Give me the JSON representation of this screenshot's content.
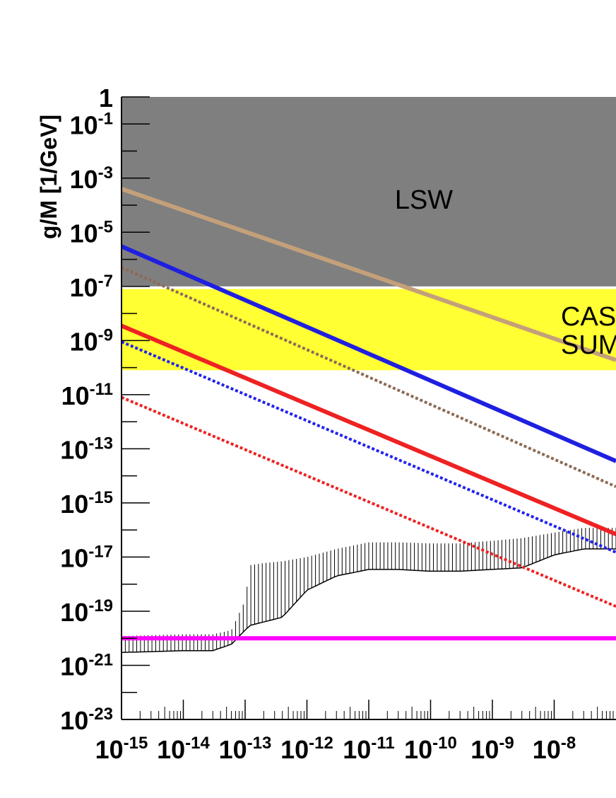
{
  "chart_data": {
    "type": "line",
    "x_scale": "log",
    "y_scale": "log",
    "xlim": [
      1e-15,
      1e-07
    ],
    "ylim": [
      1e-23,
      1
    ],
    "ylabel": "g/M [1/GeV]",
    "xlabel": "",
    "grid": false,
    "y_ticks": [
      {
        "base": "1",
        "exp": ""
      },
      {
        "base": "10",
        "exp": "-1"
      },
      {
        "base": "10",
        "exp": "-3"
      },
      {
        "base": "10",
        "exp": "-5"
      },
      {
        "base": "10",
        "exp": "-7"
      },
      {
        "base": "10",
        "exp": "-9"
      },
      {
        "base": "10",
        "exp": "-11"
      },
      {
        "base": "10",
        "exp": "-13"
      },
      {
        "base": "10",
        "exp": "-15"
      },
      {
        "base": "10",
        "exp": "-17"
      },
      {
        "base": "10",
        "exp": "-19"
      },
      {
        "base": "10",
        "exp": "-21"
      },
      {
        "base": "10",
        "exp": "-23"
      }
    ],
    "y_tick_values": [
      1,
      0.1,
      0.001,
      1e-05,
      1e-07,
      1e-09,
      1e-11,
      1e-13,
      1e-15,
      1e-17,
      1e-19,
      1e-21,
      1e-23
    ],
    "x_ticks": [
      {
        "base": "10",
        "exp": "-15"
      },
      {
        "base": "10",
        "exp": "-14"
      },
      {
        "base": "10",
        "exp": "-13"
      },
      {
        "base": "10",
        "exp": "-12"
      },
      {
        "base": "10",
        "exp": "-11"
      },
      {
        "base": "10",
        "exp": "-10"
      },
      {
        "base": "10",
        "exp": "-9"
      },
      {
        "base": "10",
        "exp": "-8"
      }
    ],
    "x_tick_values": [
      1e-15,
      1e-14,
      1e-13,
      1e-12,
      1e-11,
      1e-10,
      1e-09,
      1e-08
    ],
    "regions": [
      {
        "label_lines": [
          "LSW"
        ],
        "color": "#7f7f7f",
        "y_range": [
          1e-07,
          1
        ]
      },
      {
        "label_lines": [
          "CAS",
          "SUM"
        ],
        "color": "#ffff33",
        "y_range": [
          8e-11,
          8e-08
        ]
      }
    ],
    "series": [
      {
        "style": "solid",
        "color": "#c4a07a",
        "x": [
          1e-15,
          1e-07
        ],
        "y": [
          0.0004,
          1.9e-10
        ]
      },
      {
        "style": "solid",
        "color": "#1f1fe0",
        "x": [
          1e-15,
          1e-07
        ],
        "y": [
          3e-06,
          3.5e-14
        ]
      },
      {
        "style": "dotted",
        "color": "#8b6b55",
        "x": [
          1e-15,
          1e-07
        ],
        "y": [
          5e-07,
          4e-15
        ]
      },
      {
        "style": "solid",
        "color": "#ee2222",
        "x": [
          1e-15,
          1e-07
        ],
        "y": [
          3.5e-09,
          7e-17
        ]
      },
      {
        "style": "dotted",
        "color": "#2222ee",
        "x": [
          1e-15,
          1e-07
        ],
        "y": [
          9e-10,
          1.5e-17
        ]
      },
      {
        "style": "dotted",
        "color": "#ee2222",
        "x": [
          1e-15,
          1e-07
        ],
        "y": [
          8e-12,
          1.5e-19
        ]
      },
      {
        "style": "solid",
        "color": "#ff00ff",
        "x": [
          1e-15,
          1e-07
        ],
        "y": [
          1e-20,
          1e-20
        ]
      }
    ],
    "band": {
      "color": "#000000",
      "x": [
        1e-15,
        3e-15,
        1e-14,
        3e-14,
        6e-14,
        1e-13,
        1.2e-13,
        2e-13,
        4e-13,
        1e-12,
        3e-12,
        1e-11,
        3e-11,
        1e-10,
        3e-10,
        1e-09,
        3e-09,
        1e-08,
        3e-08,
        1e-07
      ],
      "lower": [
        3e-21,
        3.2e-21,
        3.5e-21,
        3.5e-21,
        6e-21,
        2e-20,
        3e-20,
        4e-20,
        6e-20,
        6e-19,
        2e-18,
        3.5e-18,
        3.5e-18,
        3e-18,
        3e-18,
        3.5e-18,
        4e-18,
        1.2e-17,
        2e-17,
        2e-17
      ],
      "upper": [
        1.2e-20,
        1.3e-20,
        1.4e-20,
        1.4e-20,
        2e-20,
        2.5e-19,
        5e-18,
        6e-18,
        7e-18,
        1e-17,
        2e-17,
        3.5e-17,
        3.5e-17,
        3.2e-17,
        3.2e-17,
        4e-17,
        5e-17,
        8e-17,
        1.2e-16,
        1.2e-16
      ]
    }
  }
}
